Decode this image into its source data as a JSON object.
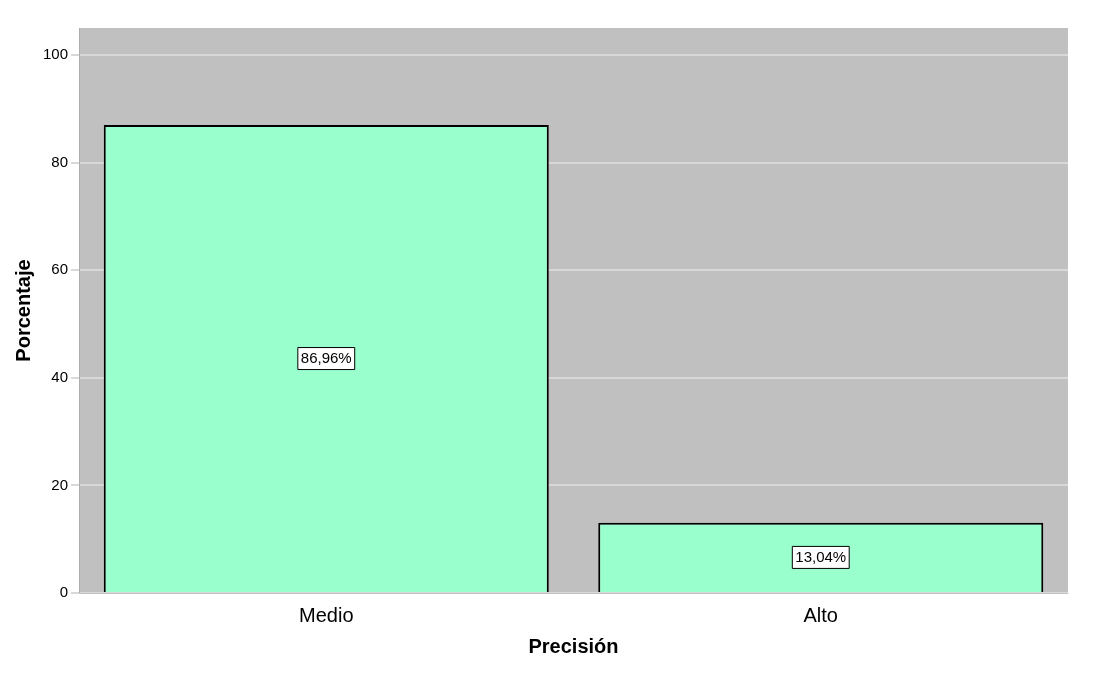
{
  "chart_data": {
    "type": "bar",
    "xlabel": "Precisión",
    "ylabel": "Porcentaje",
    "categories": [
      "Medio",
      "Alto"
    ],
    "values": [
      86.96,
      13.04
    ],
    "value_labels": [
      "86,96%",
      "13,04%"
    ],
    "color": "#99ffcc",
    "ylim": [
      0,
      105
    ],
    "yticks": [
      0,
      20,
      40,
      60,
      80,
      100
    ],
    "grid": "y",
    "legend": false
  }
}
